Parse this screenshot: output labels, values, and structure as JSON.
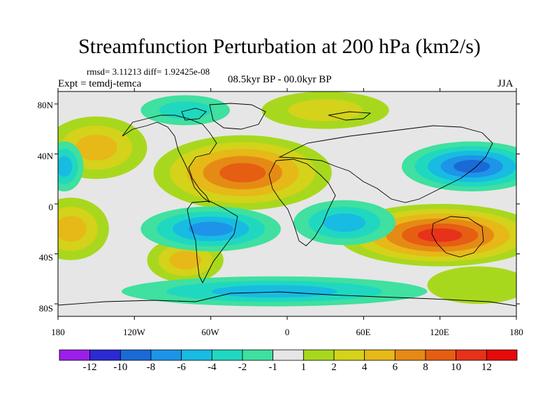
{
  "header": {
    "title": "Streamfunction Perturbation at 200 hPa (km2/s)",
    "stats": "rmsd= 3.11213 diff= 1.92425e-08",
    "experiment": "Expt = temdj-temca",
    "period": "08.5kyr BP - 00.0kyr BP",
    "season": "JJA"
  },
  "axes": {
    "lat_ticks": [
      "80N",
      "40N",
      "0",
      "40S",
      "80S"
    ],
    "lon_ticks": [
      "180",
      "120W",
      "60W",
      "0",
      "60E",
      "120E",
      "180"
    ]
  },
  "colorbar": {
    "labels": [
      "-12",
      "-10",
      "-8",
      "-6",
      "-4",
      "-2",
      "-1",
      "1",
      "2",
      "4",
      "6",
      "8",
      "10",
      "12"
    ],
    "colors": [
      "#9b1fe8",
      "#2c2ad2",
      "#1a6ad6",
      "#1d94e8",
      "#18bbe2",
      "#20d8c0",
      "#3fe0a0",
      "#e6e6e6",
      "#a8d81e",
      "#d4d21a",
      "#e6b818",
      "#e68a16",
      "#e65e12",
      "#e6321a",
      "#e60a0a"
    ]
  },
  "map": {
    "type": "filled-contour",
    "background": "#e6e6e6",
    "lon_range": [
      -180,
      180
    ],
    "lat_range": [
      -90,
      90
    ],
    "blobs": [
      {
        "lon": -35,
        "lat": 25,
        "rx": 70,
        "ry": 30,
        "colors": [
          "#a8d81e",
          "#d4d21a",
          "#e6b818",
          "#e68a16",
          "#e65e12"
        ]
      },
      {
        "lon": -150,
        "lat": 45,
        "rx": 40,
        "ry": 25,
        "colors": [
          "#a8d81e",
          "#d4d21a",
          "#e6b818"
        ]
      },
      {
        "lon": 120,
        "lat": -25,
        "rx": 80,
        "ry": 25,
        "colors": [
          "#a8d81e",
          "#d4d21a",
          "#e6b818",
          "#e68a16",
          "#e65e12",
          "#e6321a"
        ]
      },
      {
        "lon": -170,
        "lat": -20,
        "rx": 30,
        "ry": 25,
        "colors": [
          "#a8d81e",
          "#d4d21a",
          "#e6b818"
        ]
      },
      {
        "lon": -80,
        "lat": -45,
        "rx": 30,
        "ry": 18,
        "colors": [
          "#a8d81e",
          "#d4d21a",
          "#e6b818"
        ]
      },
      {
        "lon": 150,
        "lat": -65,
        "rx": 40,
        "ry": 15,
        "colors": [
          "#a8d81e"
        ]
      },
      {
        "lon": 30,
        "lat": 75,
        "rx": 50,
        "ry": 15,
        "colors": [
          "#a8d81e",
          "#d4d21a"
        ]
      },
      {
        "lon": 145,
        "lat": 30,
        "rx": 55,
        "ry": 20,
        "colors": [
          "#3fe0a0",
          "#20d8c0",
          "#18bbe2",
          "#1d94e8",
          "#1a6ad6"
        ]
      },
      {
        "lon": -60,
        "lat": -20,
        "rx": 55,
        "ry": 18,
        "colors": [
          "#3fe0a0",
          "#20d8c0",
          "#18bbe2",
          "#1d94e8"
        ]
      },
      {
        "lon": 45,
        "lat": -15,
        "rx": 40,
        "ry": 18,
        "colors": [
          "#3fe0a0",
          "#20d8c0",
          "#18bbe2"
        ]
      },
      {
        "lon": -80,
        "lat": 75,
        "rx": 35,
        "ry": 12,
        "colors": [
          "#3fe0a0",
          "#20d8c0"
        ]
      },
      {
        "lon": -175,
        "lat": 30,
        "rx": 15,
        "ry": 20,
        "colors": [
          "#3fe0a0",
          "#20d8c0",
          "#18bbe2"
        ]
      },
      {
        "lon": -10,
        "lat": -70,
        "rx": 120,
        "ry": 12,
        "colors": [
          "#3fe0a0",
          "#20d8c0",
          "#18bbe2"
        ]
      }
    ]
  }
}
